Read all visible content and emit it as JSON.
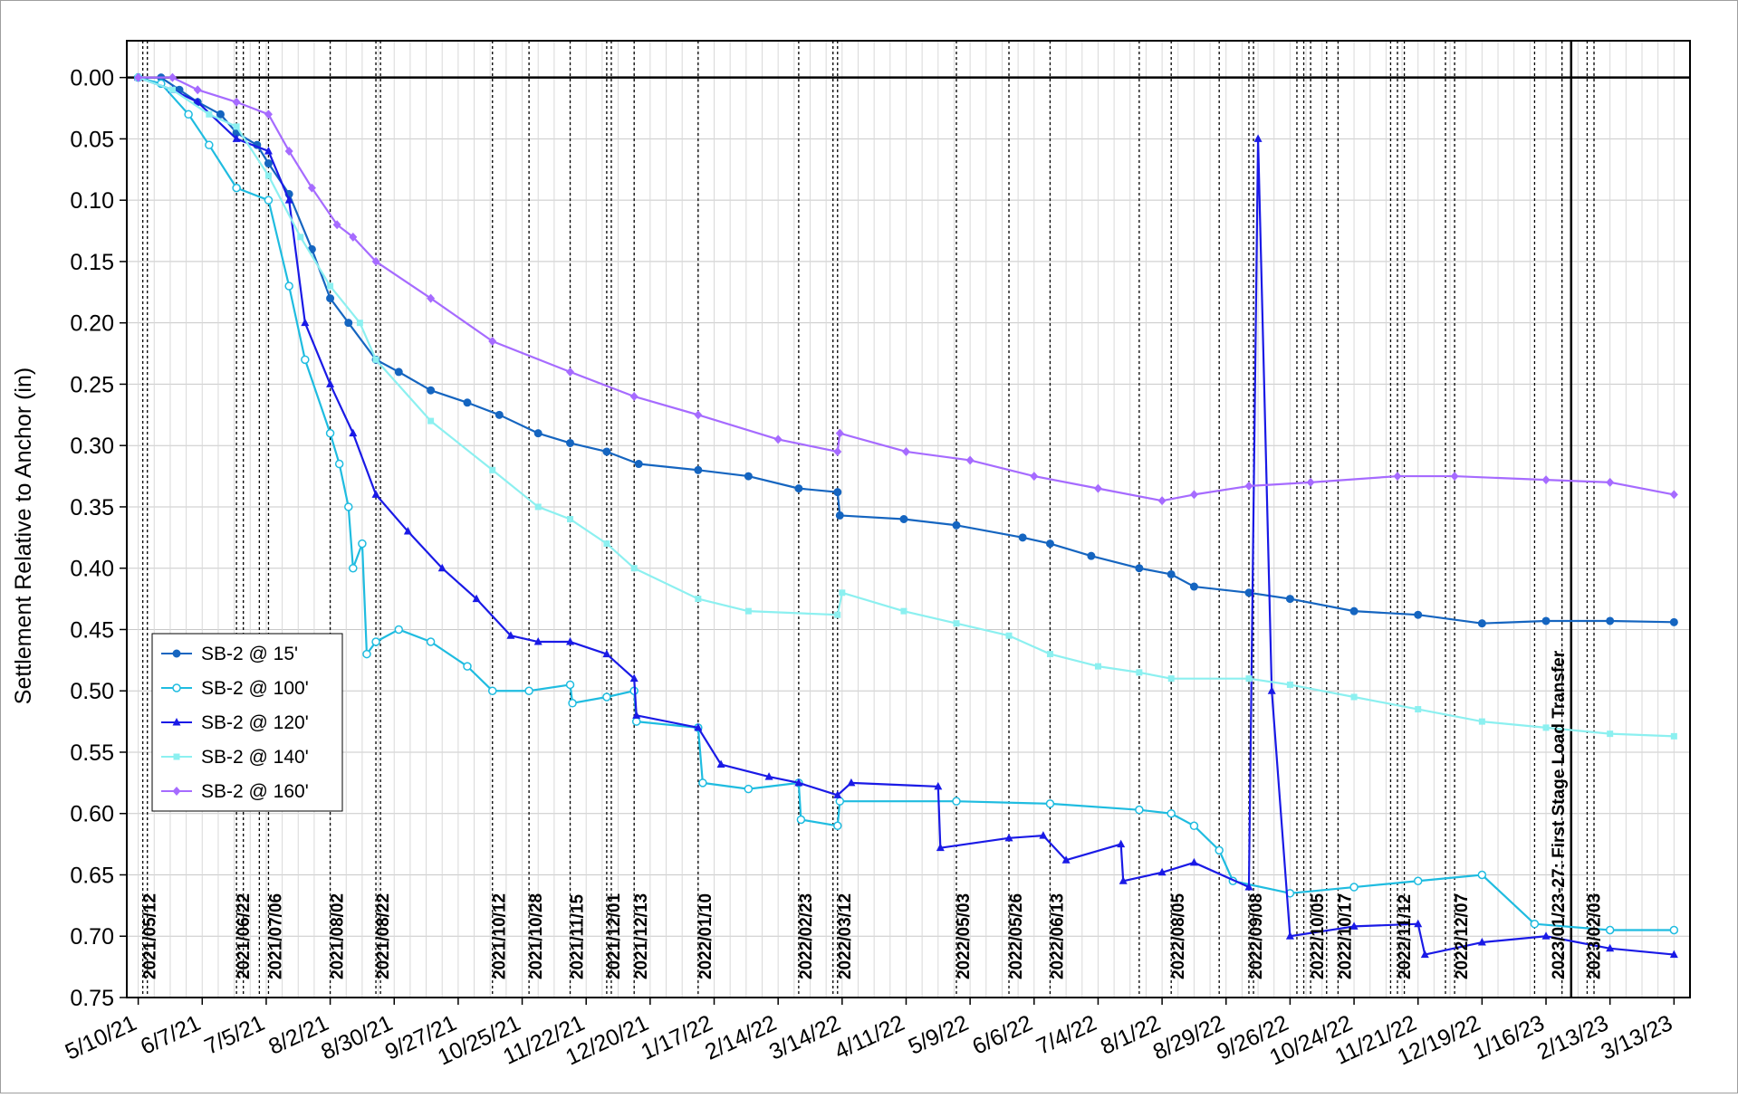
{
  "chart_data": {
    "type": "line",
    "ylabel": "Settlement Relative to Anchor (in)",
    "xlabel": "",
    "title": "",
    "ylim": [
      0.75,
      -0.03
    ],
    "y_inverted": true,
    "xlim": [
      "2021-05-05",
      "2023-03-20"
    ],
    "y_ticks": [
      "0.00",
      "0.05",
      "0.10",
      "0.15",
      "0.20",
      "0.25",
      "0.30",
      "0.35",
      "0.40",
      "0.45",
      "0.50",
      "0.55",
      "0.60",
      "0.65",
      "0.70",
      "0.75"
    ],
    "x_ticks": [
      {
        "date": "2021-05-10",
        "label": "5/10/21"
      },
      {
        "date": "2021-06-07",
        "label": "6/7/21"
      },
      {
        "date": "2021-07-05",
        "label": "7/5/21"
      },
      {
        "date": "2021-08-02",
        "label": "8/2/21"
      },
      {
        "date": "2021-08-30",
        "label": "8/30/21"
      },
      {
        "date": "2021-09-27",
        "label": "9/27/21"
      },
      {
        "date": "2021-10-25",
        "label": "10/25/21"
      },
      {
        "date": "2021-11-22",
        "label": "11/22/21"
      },
      {
        "date": "2021-12-20",
        "label": "12/20/21"
      },
      {
        "date": "2022-01-17",
        "label": "1/17/22"
      },
      {
        "date": "2022-02-14",
        "label": "2/14/22"
      },
      {
        "date": "2022-03-14",
        "label": "3/14/22"
      },
      {
        "date": "2022-04-11",
        "label": "4/11/22"
      },
      {
        "date": "2022-05-09",
        "label": "5/9/22"
      },
      {
        "date": "2022-06-06",
        "label": "6/6/22"
      },
      {
        "date": "2022-07-04",
        "label": "7/4/22"
      },
      {
        "date": "2022-08-01",
        "label": "8/1/22"
      },
      {
        "date": "2022-08-29",
        "label": "8/29/22"
      },
      {
        "date": "2022-09-26",
        "label": "9/26/22"
      },
      {
        "date": "2022-10-24",
        "label": "10/24/22"
      },
      {
        "date": "2022-11-21",
        "label": "11/21/22"
      },
      {
        "date": "2022-12-19",
        "label": "12/19/22"
      },
      {
        "date": "2023-01-16",
        "label": "1/16/23"
      },
      {
        "date": "2023-02-13",
        "label": "2/13/23"
      },
      {
        "date": "2023-03-13",
        "label": "3/13/23"
      }
    ],
    "events": [
      {
        "date": "2021-05-12",
        "label": "2021/05/12"
      },
      {
        "date": "2021-06-22",
        "label": "2021/06/22"
      },
      {
        "date": "2021-07-06",
        "label": "2021/07/06"
      },
      {
        "date": "2021-08-02",
        "label": "2021/08/02"
      },
      {
        "date": "2021-08-22",
        "label": "2021/08/22"
      },
      {
        "date": "2021-10-12",
        "label": "2021/10/12"
      },
      {
        "date": "2021-10-28",
        "label": "2021/10/28"
      },
      {
        "date": "2021-11-15",
        "label": "2021/11/15"
      },
      {
        "date": "2021-12-01",
        "label": "2021/12/01"
      },
      {
        "date": "2021-12-13",
        "label": "2021/12/13"
      },
      {
        "date": "2022-01-10",
        "label": "2022/01/10"
      },
      {
        "date": "2022-02-23",
        "label": "2022/02/23"
      },
      {
        "date": "2022-03-12",
        "label": "2022/03/12"
      },
      {
        "date": "2022-05-03",
        "label": "2022/05/03"
      },
      {
        "date": "2022-05-26",
        "label": "2022/05/26"
      },
      {
        "date": "2022-06-13",
        "label": "2022/06/13"
      },
      {
        "date": "2022-08-05",
        "label": "2022/08/05"
      },
      {
        "date": "2022-09-08",
        "label": "2022/09/08"
      },
      {
        "date": "2022-10-05",
        "label": "2022/10/05"
      },
      {
        "date": "2022-10-17",
        "label": "2022/10/17"
      },
      {
        "date": "2022-11-12",
        "label": "2022/11/12"
      },
      {
        "date": "2022-12-07",
        "label": "2022/12/07"
      },
      {
        "date": "2023-02-03",
        "label": "2023/02/03"
      }
    ],
    "extra_event_dates": [
      "2021-05-14",
      "2021-06-25",
      "2021-07-02",
      "2021-08-24",
      "2021-12-03",
      "2022-03-10",
      "2022-07-22",
      "2022-08-26",
      "2022-09-10",
      "2022-09-29",
      "2022-10-02",
      "2022-10-12",
      "2022-11-09",
      "2022-11-15",
      "2022-12-03",
      "2023-01-11",
      "2023-01-23",
      "2023-02-06"
    ],
    "load_transfer": {
      "date": "2023-01-27",
      "label": "2023/01/23-27: First Stage Load Transfer"
    },
    "grid": true,
    "legend_position": "left, lower-middle",
    "series": [
      {
        "name": "SB-2 @ 15'",
        "color": "#1565C0",
        "marker": "circle-filled",
        "points": [
          [
            "2021-05-10",
            0.0
          ],
          [
            "2021-05-20",
            0.0
          ],
          [
            "2021-05-28",
            0.01
          ],
          [
            "2021-06-05",
            0.02
          ],
          [
            "2021-06-15",
            0.03
          ],
          [
            "2021-06-22",
            0.045
          ],
          [
            "2021-07-01",
            0.055
          ],
          [
            "2021-07-06",
            0.07
          ],
          [
            "2021-07-15",
            0.095
          ],
          [
            "2021-07-25",
            0.14
          ],
          [
            "2021-08-02",
            0.18
          ],
          [
            "2021-08-10",
            0.2
          ],
          [
            "2021-08-22",
            0.23
          ],
          [
            "2021-09-01",
            0.24
          ],
          [
            "2021-09-15",
            0.255
          ],
          [
            "2021-10-01",
            0.265
          ],
          [
            "2021-10-15",
            0.275
          ],
          [
            "2021-11-01",
            0.29
          ],
          [
            "2021-11-15",
            0.298
          ],
          [
            "2021-12-01",
            0.305
          ],
          [
            "2021-12-15",
            0.315
          ],
          [
            "2022-01-10",
            0.32
          ],
          [
            "2022-02-01",
            0.325
          ],
          [
            "2022-02-23",
            0.335
          ],
          [
            "2022-03-12",
            0.338
          ],
          [
            "2022-03-13",
            0.357
          ],
          [
            "2022-04-10",
            0.36
          ],
          [
            "2022-05-03",
            0.365
          ],
          [
            "2022-06-01",
            0.375
          ],
          [
            "2022-06-13",
            0.38
          ],
          [
            "2022-07-01",
            0.39
          ],
          [
            "2022-07-22",
            0.4
          ],
          [
            "2022-08-05",
            0.405
          ],
          [
            "2022-08-15",
            0.415
          ],
          [
            "2022-09-08",
            0.42
          ],
          [
            "2022-09-26",
            0.425
          ],
          [
            "2022-10-24",
            0.435
          ],
          [
            "2022-11-21",
            0.438
          ],
          [
            "2022-12-19",
            0.445
          ],
          [
            "2023-01-16",
            0.443
          ],
          [
            "2023-02-13",
            0.443
          ],
          [
            "2023-03-13",
            0.444
          ]
        ]
      },
      {
        "name": "SB-2 @ 100'",
        "color": "#1FBCE0",
        "marker": "circle-open",
        "points": [
          [
            "2021-05-10",
            0.0
          ],
          [
            "2021-05-20",
            0.005
          ],
          [
            "2021-06-01",
            0.03
          ],
          [
            "2021-06-10",
            0.055
          ],
          [
            "2021-06-22",
            0.09
          ],
          [
            "2021-07-06",
            0.1
          ],
          [
            "2021-07-15",
            0.17
          ],
          [
            "2021-07-22",
            0.23
          ],
          [
            "2021-08-02",
            0.29
          ],
          [
            "2021-08-06",
            0.315
          ],
          [
            "2021-08-10",
            0.35
          ],
          [
            "2021-08-12",
            0.4
          ],
          [
            "2021-08-16",
            0.38
          ],
          [
            "2021-08-18",
            0.47
          ],
          [
            "2021-08-22",
            0.46
          ],
          [
            "2021-09-01",
            0.45
          ],
          [
            "2021-09-15",
            0.46
          ],
          [
            "2021-10-01",
            0.48
          ],
          [
            "2021-10-12",
            0.5
          ],
          [
            "2021-10-28",
            0.5
          ],
          [
            "2021-11-15",
            0.495
          ],
          [
            "2021-11-16",
            0.51
          ],
          [
            "2021-12-01",
            0.505
          ],
          [
            "2021-12-13",
            0.5
          ],
          [
            "2021-12-14",
            0.525
          ],
          [
            "2022-01-10",
            0.53
          ],
          [
            "2022-01-12",
            0.575
          ],
          [
            "2022-02-01",
            0.58
          ],
          [
            "2022-02-23",
            0.575
          ],
          [
            "2022-02-24",
            0.605
          ],
          [
            "2022-03-12",
            0.61
          ],
          [
            "2022-03-13",
            0.59
          ],
          [
            "2022-05-03",
            0.59
          ],
          [
            "2022-06-13",
            0.592
          ],
          [
            "2022-07-22",
            0.597
          ],
          [
            "2022-08-05",
            0.6
          ],
          [
            "2022-08-15",
            0.61
          ],
          [
            "2022-08-26",
            0.63
          ],
          [
            "2022-09-01",
            0.655
          ],
          [
            "2022-09-26",
            0.665
          ],
          [
            "2022-10-24",
            0.66
          ],
          [
            "2022-11-21",
            0.655
          ],
          [
            "2022-12-19",
            0.65
          ],
          [
            "2023-01-11",
            0.69
          ],
          [
            "2023-02-13",
            0.695
          ],
          [
            "2023-03-13",
            0.695
          ]
        ]
      },
      {
        "name": "SB-2 @ 120'",
        "color": "#1A1AE6",
        "marker": "triangle",
        "points": [
          [
            "2021-05-10",
            0.0
          ],
          [
            "2021-05-25",
            0.01
          ],
          [
            "2021-06-05",
            0.02
          ],
          [
            "2021-06-22",
            0.05
          ],
          [
            "2021-07-06",
            0.06
          ],
          [
            "2021-07-15",
            0.1
          ],
          [
            "2021-07-22",
            0.2
          ],
          [
            "2021-08-02",
            0.25
          ],
          [
            "2021-08-12",
            0.29
          ],
          [
            "2021-08-22",
            0.34
          ],
          [
            "2021-09-05",
            0.37
          ],
          [
            "2021-09-20",
            0.4
          ],
          [
            "2021-10-05",
            0.425
          ],
          [
            "2021-10-20",
            0.455
          ],
          [
            "2021-11-01",
            0.46
          ],
          [
            "2021-11-15",
            0.46
          ],
          [
            "2021-12-01",
            0.47
          ],
          [
            "2021-12-13",
            0.49
          ],
          [
            "2021-12-14",
            0.52
          ],
          [
            "2022-01-10",
            0.53
          ],
          [
            "2022-01-20",
            0.56
          ],
          [
            "2022-02-10",
            0.57
          ],
          [
            "2022-02-23",
            0.575
          ],
          [
            "2022-03-12",
            0.585
          ],
          [
            "2022-03-18",
            0.575
          ],
          [
            "2022-04-25",
            0.578
          ],
          [
            "2022-04-26",
            0.628
          ],
          [
            "2022-05-26",
            0.62
          ],
          [
            "2022-06-10",
            0.618
          ],
          [
            "2022-06-20",
            0.638
          ],
          [
            "2022-07-14",
            0.625
          ],
          [
            "2022-07-15",
            0.655
          ],
          [
            "2022-08-01",
            0.648
          ],
          [
            "2022-08-15",
            0.64
          ],
          [
            "2022-09-08",
            0.66
          ],
          [
            "2022-09-12",
            0.05
          ],
          [
            "2022-09-18",
            0.5
          ],
          [
            "2022-09-26",
            0.7
          ],
          [
            "2022-10-24",
            0.692
          ],
          [
            "2022-11-21",
            0.69
          ],
          [
            "2022-11-24",
            0.715
          ],
          [
            "2022-12-19",
            0.705
          ],
          [
            "2023-01-16",
            0.7
          ],
          [
            "2023-02-13",
            0.71
          ],
          [
            "2023-03-13",
            0.715
          ]
        ]
      },
      {
        "name": "SB-2 @ 140'",
        "color": "#8CF0F0",
        "marker": "square",
        "points": [
          [
            "2021-05-10",
            0.0
          ],
          [
            "2021-05-25",
            0.01
          ],
          [
            "2021-06-10",
            0.03
          ],
          [
            "2021-06-22",
            0.04
          ],
          [
            "2021-07-06",
            0.08
          ],
          [
            "2021-07-20",
            0.13
          ],
          [
            "2021-08-02",
            0.17
          ],
          [
            "2021-08-15",
            0.2
          ],
          [
            "2021-08-22",
            0.23
          ],
          [
            "2021-09-15",
            0.28
          ],
          [
            "2021-10-12",
            0.32
          ],
          [
            "2021-11-01",
            0.35
          ],
          [
            "2021-11-15",
            0.36
          ],
          [
            "2021-12-01",
            0.38
          ],
          [
            "2021-12-13",
            0.4
          ],
          [
            "2022-01-10",
            0.425
          ],
          [
            "2022-02-01",
            0.435
          ],
          [
            "2022-03-12",
            0.438
          ],
          [
            "2022-03-14",
            0.42
          ],
          [
            "2022-04-10",
            0.435
          ],
          [
            "2022-05-03",
            0.445
          ],
          [
            "2022-05-26",
            0.455
          ],
          [
            "2022-06-13",
            0.47
          ],
          [
            "2022-07-04",
            0.48
          ],
          [
            "2022-07-22",
            0.485
          ],
          [
            "2022-08-05",
            0.49
          ],
          [
            "2022-09-08",
            0.49
          ],
          [
            "2022-09-26",
            0.495
          ],
          [
            "2022-10-24",
            0.505
          ],
          [
            "2022-11-21",
            0.515
          ],
          [
            "2022-12-19",
            0.525
          ],
          [
            "2023-01-16",
            0.53
          ],
          [
            "2023-02-13",
            0.535
          ],
          [
            "2023-03-13",
            0.537
          ]
        ]
      },
      {
        "name": "SB-2 @ 160'",
        "color": "#A66BFF",
        "marker": "diamond",
        "points": [
          [
            "2021-05-10",
            0.0
          ],
          [
            "2021-05-25",
            0.0
          ],
          [
            "2021-06-05",
            0.01
          ],
          [
            "2021-06-22",
            0.02
          ],
          [
            "2021-07-06",
            0.03
          ],
          [
            "2021-07-15",
            0.06
          ],
          [
            "2021-07-25",
            0.09
          ],
          [
            "2021-08-05",
            0.12
          ],
          [
            "2021-08-12",
            0.13
          ],
          [
            "2021-08-22",
            0.15
          ],
          [
            "2021-09-15",
            0.18
          ],
          [
            "2021-10-12",
            0.215
          ],
          [
            "2021-11-15",
            0.24
          ],
          [
            "2021-12-13",
            0.26
          ],
          [
            "2022-01-10",
            0.275
          ],
          [
            "2022-02-14",
            0.295
          ],
          [
            "2022-03-12",
            0.305
          ],
          [
            "2022-03-13",
            0.29
          ],
          [
            "2022-04-11",
            0.305
          ],
          [
            "2022-05-09",
            0.312
          ],
          [
            "2022-06-06",
            0.325
          ],
          [
            "2022-07-04",
            0.335
          ],
          [
            "2022-08-01",
            0.345
          ],
          [
            "2022-08-15",
            0.34
          ],
          [
            "2022-09-08",
            0.333
          ],
          [
            "2022-10-05",
            0.33
          ],
          [
            "2022-11-12",
            0.325
          ],
          [
            "2022-12-07",
            0.325
          ],
          [
            "2023-01-16",
            0.328
          ],
          [
            "2023-02-13",
            0.33
          ],
          [
            "2023-03-13",
            0.34
          ]
        ]
      }
    ]
  }
}
